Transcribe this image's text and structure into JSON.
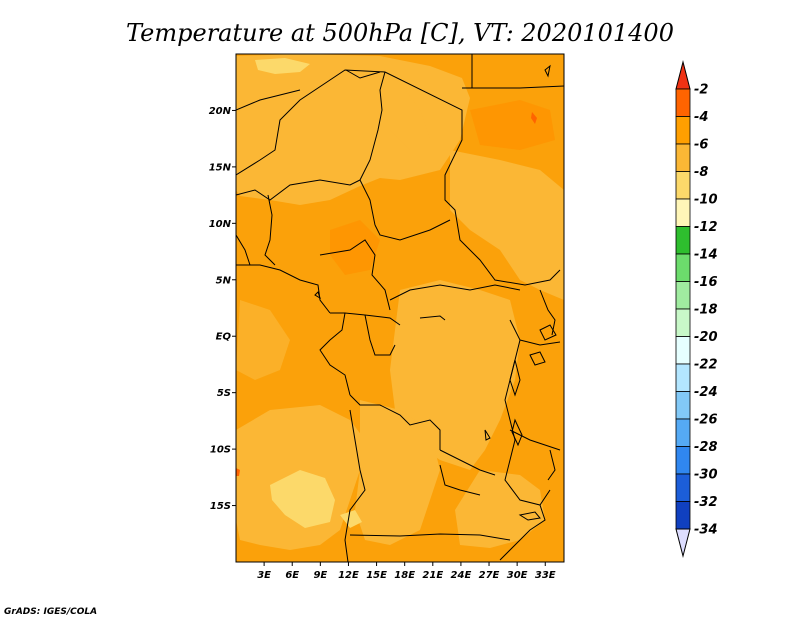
{
  "title": "Temperature at 500hPa [C], VT: 2020101400",
  "credit": "GrADS: IGES/COLA",
  "map": {
    "lat_labels": [
      {
        "lat": 20,
        "label": "20N"
      },
      {
        "lat": 15,
        "label": "15N"
      },
      {
        "lat": 10,
        "label": "10N"
      },
      {
        "lat": 5,
        "label": "5N"
      },
      {
        "lat": 0,
        "label": "EQ"
      },
      {
        "lat": -5,
        "label": "5S"
      },
      {
        "lat": -10,
        "label": "10S"
      },
      {
        "lat": -15,
        "label": "15S"
      }
    ],
    "lon_labels": [
      {
        "lon": 3,
        "label": "3E"
      },
      {
        "lon": 6,
        "label": "6E"
      },
      {
        "lon": 9,
        "label": "9E"
      },
      {
        "lon": 12,
        "label": "12E"
      },
      {
        "lon": 15,
        "label": "15E"
      },
      {
        "lon": 18,
        "label": "18E"
      },
      {
        "lon": 21,
        "label": "21E"
      },
      {
        "lon": 24,
        "label": "24E"
      },
      {
        "lon": 27,
        "label": "27E"
      },
      {
        "lon": 30,
        "label": "30E"
      },
      {
        "lon": 33,
        "label": "33E"
      }
    ],
    "lon_range": [
      0,
      35
    ],
    "lat_range": [
      -20,
      25
    ],
    "background_color": "#fba10a"
  },
  "colorbar": {
    "labels": [
      "-2",
      "-4",
      "-6",
      "-8",
      "-10",
      "-12",
      "-14",
      "-16",
      "-18",
      "-20",
      "-22",
      "-24",
      "-26",
      "-28",
      "-30",
      "-32",
      "-34"
    ],
    "colors": [
      "#ff3a14",
      "#ff6400",
      "#ff9f00",
      "#fbb735",
      "#fcd96a",
      "#fff6b8",
      "#2ebe2e",
      "#6cdc6c",
      "#a0eca0",
      "#c8f8c8",
      "#e6ffff",
      "#b3e6ff",
      "#82c9f7",
      "#55aaf5",
      "#3087f0",
      "#1c5ed9",
      "#1040c0",
      "#0a10a0"
    ],
    "top_color": "#f03214",
    "bottom_color": "#ddddff"
  }
}
